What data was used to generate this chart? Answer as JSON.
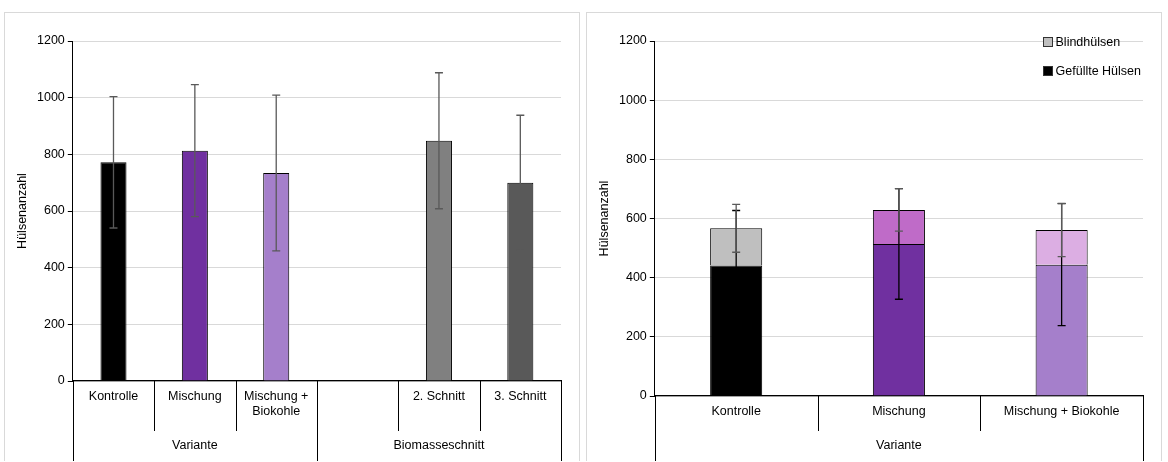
{
  "chart_data": [
    {
      "type": "bar",
      "ylabel": "Hülsenanzahl",
      "categories": [
        "Kontrolle",
        "Mischung",
        "Mischung + Biokohle",
        null,
        "2. Schnitt",
        "3. Schnitt"
      ],
      "values": [
        772,
        813,
        734,
        null,
        848,
        700
      ],
      "colors": [
        "#000000",
        "#7030a0",
        "#a57fcb",
        "#000000",
        "#808080",
        "#595959"
      ],
      "errors": [
        232,
        233,
        275,
        null,
        240,
        238
      ],
      "ylim": [
        0,
        1200
      ],
      "yticks": [
        0,
        200,
        400,
        600,
        800,
        1000,
        1200
      ],
      "grid": "y",
      "annotations": [
        "Variante",
        "Biomasseschnitt"
      ]
    },
    {
      "type": "bar",
      "ylabel": "Hülsenanzahl",
      "categories": [
        "Kontrolle",
        "Mischung",
        "Mischung + Biokohle"
      ],
      "stacked": true,
      "series": [
        {
          "name": "Gefüllte Hülsen",
          "color": "#000000",
          "colors": [
            "#000000",
            "#7030a0",
            "#a57fcb"
          ],
          "values": [
            441,
            514,
            444
          ],
          "errors": [
            186,
            187,
            206
          ]
        },
        {
          "name": "Blindhülsen",
          "color": "#bfbfbf",
          "colors": [
            "#bfbfbf",
            "#bf6bc8",
            "#dcaee3"
          ],
          "values": [
            126,
            115,
            117
          ],
          "errors": [
            81,
            72,
            90
          ]
        }
      ],
      "ylim": [
        0,
        1200
      ],
      "yticks": [
        0,
        200,
        400,
        600,
        800,
        1000,
        1200
      ],
      "grid": "y",
      "legend": "top right",
      "annotations": [
        "Variante"
      ]
    }
  ]
}
